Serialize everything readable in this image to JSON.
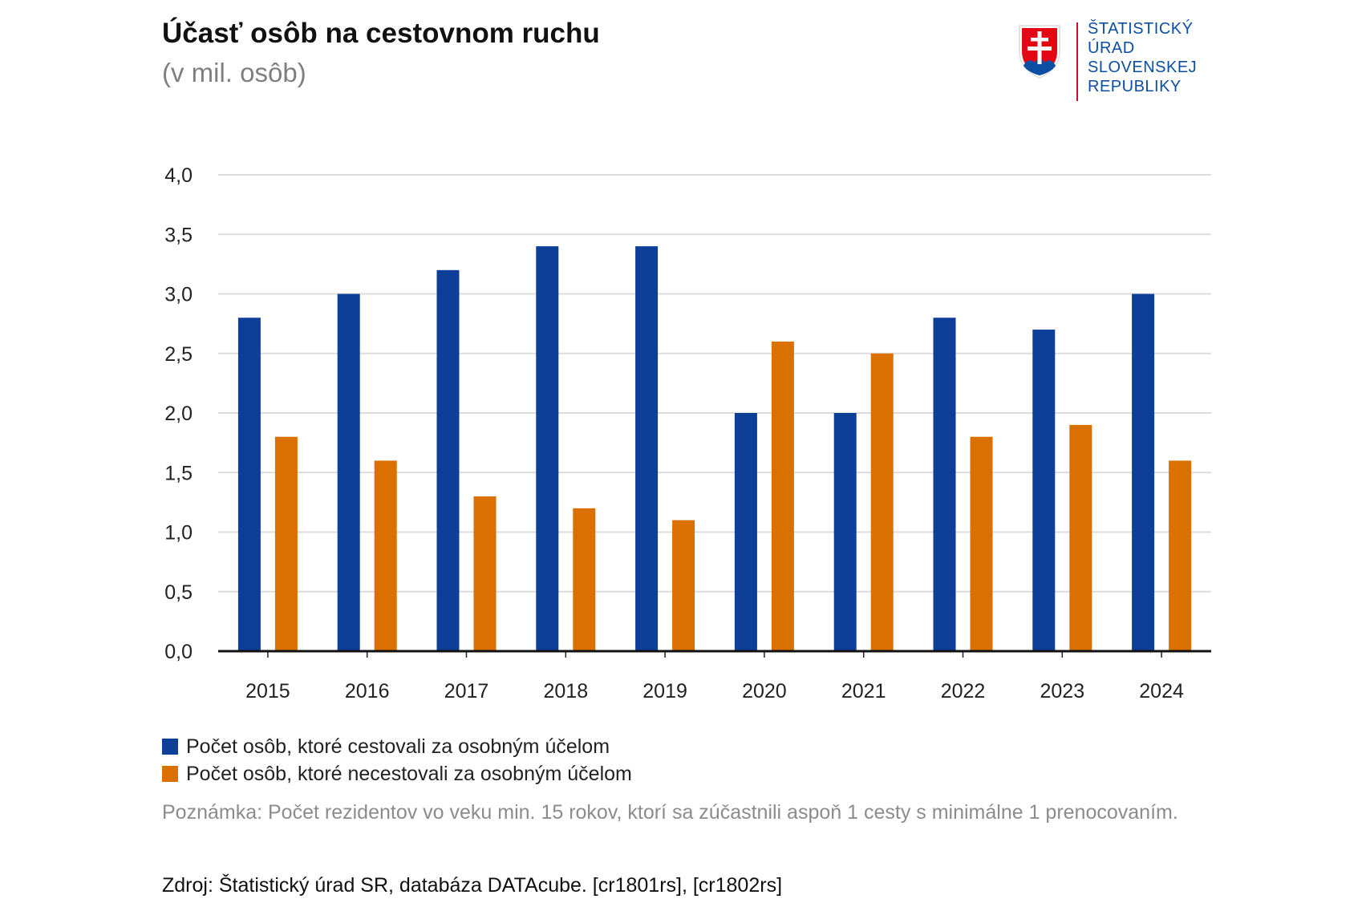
{
  "header": {
    "title": "Účasť osôb na cestovnom ruchu",
    "subtitle": "(v mil. osôb)"
  },
  "logo": {
    "emblem_icon": "slovak-coat-of-arms-icon",
    "lines": [
      "ŠTATISTICKÝ",
      "ÚRAD",
      "SLOVENSKEJ",
      "REPUBLIKY"
    ]
  },
  "chart_data": {
    "type": "bar",
    "categories": [
      "2015",
      "2016",
      "2017",
      "2018",
      "2019",
      "2020",
      "2021",
      "2022",
      "2023",
      "2024"
    ],
    "series": [
      {
        "name": "Počet osôb, ktoré cestovali za osobným účelom",
        "color": "#0d3f99",
        "values": [
          2.8,
          3.0,
          3.2,
          3.4,
          3.4,
          2.0,
          2.0,
          2.8,
          2.7,
          3.0
        ]
      },
      {
        "name": "Počet osôb, ktoré necestovali za osobným účelom",
        "color": "#d97000",
        "values": [
          1.8,
          1.6,
          1.3,
          1.2,
          1.1,
          2.6,
          2.5,
          1.8,
          1.9,
          1.6
        ]
      }
    ],
    "yticks": [
      "0,0",
      "0,5",
      "1,0",
      "1,5",
      "2,0",
      "2,5",
      "3,0",
      "3,5",
      "4,0"
    ],
    "ylim": [
      0,
      4
    ],
    "grid": true,
    "legend_position": "bottom-left"
  },
  "footer": {
    "note": "Poznámka: Počet rezidentov vo veku min. 15 rokov, ktorí sa zúčastnili aspoň 1 cesty s minimálne 1 prenocovaním.",
    "source": "Zdroj: Štatistický úrad SR, databáza DATAcube. [cr1801rs], [cr1802rs]"
  }
}
